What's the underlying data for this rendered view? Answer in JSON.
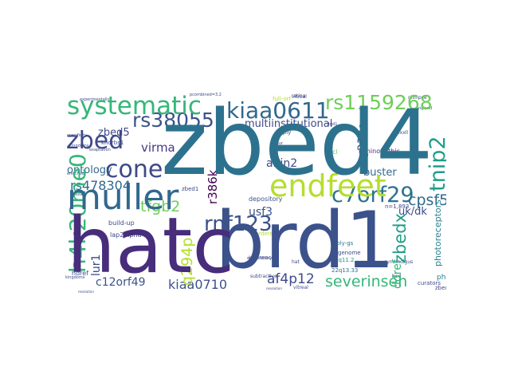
{
  "word_cloud": {
    "words": [
      {
        "text": "zbed4",
        "color": "#2c728e"
      },
      {
        "text": "hatc",
        "color": "#472d7b"
      },
      {
        "text": "brd1",
        "color": "#3b528b"
      },
      {
        "text": "muller",
        "color": "#31688e"
      },
      {
        "text": "endfeet",
        "color": "#b5de2b"
      },
      {
        "text": "systematic",
        "color": "#35b779"
      },
      {
        "text": "kiaa0611",
        "color": "#31688e"
      },
      {
        "text": "rs1159268",
        "color": "#6ece58"
      },
      {
        "text": "rs38055",
        "color": "#3b528b"
      },
      {
        "text": "h4k20me0",
        "color": "#35b779"
      },
      {
        "text": "tnip2",
        "color": "#1f9e89"
      },
      {
        "text": "zbed",
        "color": "#3e4989"
      },
      {
        "text": "cone",
        "color": "#3e4989"
      },
      {
        "text": "rnf123",
        "color": "#3b528b"
      },
      {
        "text": "c7orf29",
        "color": "#2c728e"
      },
      {
        "text": "zbedx",
        "color": "#1f9e89"
      },
      {
        "text": "cpsf5",
        "color": "#31688e"
      },
      {
        "text": "severinsen",
        "color": "#35b779"
      },
      {
        "text": "rs478304",
        "color": "#31688e"
      },
      {
        "text": "tfgb2",
        "color": "#6ece58"
      },
      {
        "text": "af4p12",
        "color": "#3e4989"
      },
      {
        "text": "kiaa0710",
        "color": "#3b528b"
      },
      {
        "text": "c12orf49",
        "color": "#3b528b"
      },
      {
        "text": "multiinstitutional",
        "color": "#3e4989"
      },
      {
        "text": "virma",
        "color": "#443983"
      },
      {
        "text": "zbed5",
        "color": "#3e4989"
      },
      {
        "text": "ontology",
        "color": "#31688e"
      },
      {
        "text": "r386k",
        "color": "#440154"
      },
      {
        "text": "q294p",
        "color": "#b5de2b"
      },
      {
        "text": "lur1",
        "color": "#3e4989"
      },
      {
        "text": "abin2",
        "color": "#3e4989"
      },
      {
        "text": "usf3",
        "color": "#3b528b"
      },
      {
        "text": "buster",
        "color": "#31688e"
      },
      {
        "text": "uk/dk",
        "color": "#3e4989"
      },
      {
        "text": "g232e",
        "color": "#3b528b"
      },
      {
        "text": "ddref",
        "color": "#35b779"
      },
      {
        "text": "photoreceptors",
        "color": "#26828e"
      },
      {
        "text": "laminopathic",
        "color": "#482878"
      },
      {
        "text": "build-up",
        "color": "#3e4989"
      },
      {
        "text": "depository",
        "color": "#3b528b"
      },
      {
        "text": "curators",
        "color": "#3e4989"
      },
      {
        "text": "zbed1",
        "color": "#3e4989"
      },
      {
        "text": "inference",
        "color": "#3e4989"
      },
      {
        "text": "poly-gs",
        "color": "#2c728e"
      },
      {
        "text": "n=1,893",
        "color": "#3e4989"
      },
      {
        "text": "5q11.2",
        "color": "#21918c"
      },
      {
        "text": "22q13.33",
        "color": "#2c728e"
      },
      {
        "text": "lap2alpha",
        "color": "#3e4989"
      },
      {
        "text": "hdref",
        "color": "#3b528b"
      },
      {
        "text": "khdrbs1",
        "color": "#3e4989"
      },
      {
        "text": "ucl",
        "color": "#6ece58"
      },
      {
        "text": "full-orf",
        "color": "#b5de2b"
      },
      {
        "text": "retina",
        "color": "#3e4989"
      },
      {
        "text": "genome",
        "color": "#3e4989"
      },
      {
        "text": "vitreal",
        "color": "#3e4989"
      },
      {
        "text": "cdnas",
        "color": "#3e4989"
      },
      {
        "text": "imply",
        "color": "#3e4989"
      },
      {
        "text": "subtractive",
        "color": "#3e4989"
      },
      {
        "text": "bed",
        "color": "#3e4989"
      },
      {
        "text": "zbed2",
        "color": "#3e4989"
      },
      {
        "text": "kingdoms",
        "color": "#3e4989"
      },
      {
        "text": "exaptation",
        "color": "#3e4989"
      },
      {
        "text": "cynomolgus",
        "color": "#3e4989"
      },
      {
        "text": "glimpse",
        "color": "#3e4989"
      },
      {
        "text": "resolution",
        "color": "#3e4989"
      },
      {
        "text": "ordered",
        "color": "#b5de2b"
      },
      {
        "text": "spur",
        "color": "#3e4989"
      },
      {
        "text": "hat",
        "color": "#3e4989"
      },
      {
        "text": "lxxll",
        "color": "#3e4989"
      },
      {
        "text": "tgd1",
        "color": "#3e4989"
      },
      {
        "text": "england",
        "color": "#3e4989"
      },
      {
        "text": "evolutionary",
        "color": "#3e4989"
      },
      {
        "text": "pcombined=3.2",
        "color": "#b5de2b"
      },
      {
        "text": "experimentally",
        "color": "#3e4989"
      },
      {
        "text": "specificity",
        "color": "#3e4989"
      },
      {
        "text": "enriched",
        "color": "#3e4989"
      },
      {
        "text": "mouse",
        "color": "#3e4989"
      }
    ]
  }
}
